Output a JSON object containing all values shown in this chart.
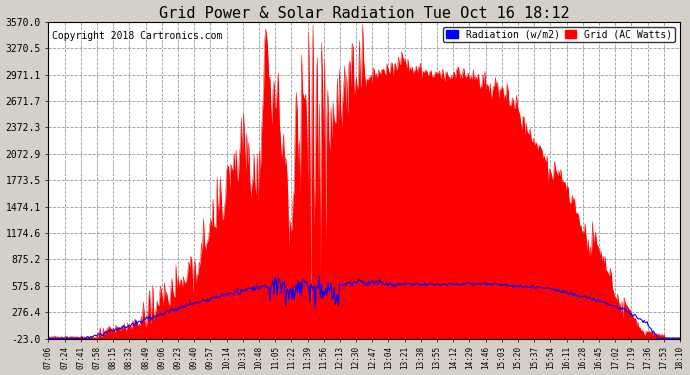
{
  "title": "Grid Power & Solar Radiation Tue Oct 16 18:12",
  "copyright": "Copyright 2018 Cartronics.com",
  "legend_radiation": "Radiation (w/m2)",
  "legend_grid": "Grid (AC Watts)",
  "yticks": [
    -23.0,
    276.4,
    575.8,
    875.2,
    1174.6,
    1474.1,
    1773.5,
    2072.9,
    2372.3,
    2671.7,
    2971.1,
    3270.5,
    3570.0
  ],
  "ymin": -23.0,
  "ymax": 3570.0,
  "background_color": "#d4d0c8",
  "plot_background": "#ffffff",
  "grid_color": "#999999",
  "radiation_color": "#0000ff",
  "grid_fill_color": "#ff0000",
  "title_fontsize": 11,
  "copyright_fontsize": 7,
  "legend_fontsize": 7,
  "xtick_fontsize": 5.5,
  "ytick_fontsize": 7,
  "xtick_labels": [
    "07:06",
    "07:24",
    "07:41",
    "07:58",
    "08:15",
    "08:32",
    "08:49",
    "09:06",
    "09:23",
    "09:40",
    "09:57",
    "10:14",
    "10:31",
    "10:48",
    "11:05",
    "11:22",
    "11:39",
    "11:56",
    "12:13",
    "12:30",
    "12:47",
    "13:04",
    "13:21",
    "13:38",
    "13:55",
    "14:12",
    "14:29",
    "14:46",
    "15:03",
    "15:20",
    "15:37",
    "15:54",
    "16:11",
    "16:28",
    "16:45",
    "17:02",
    "17:19",
    "17:36",
    "17:53",
    "18:10"
  ],
  "num_points": 600
}
